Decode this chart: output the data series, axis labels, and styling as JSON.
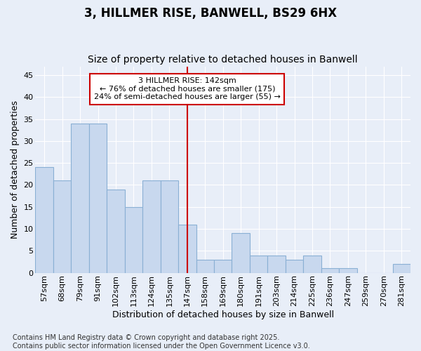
{
  "title1": "3, HILLMER RISE, BANWELL, BS29 6HX",
  "title2": "Size of property relative to detached houses in Banwell",
  "xlabel": "Distribution of detached houses by size in Banwell",
  "ylabel": "Number of detached properties",
  "categories": [
    "57sqm",
    "68sqm",
    "79sqm",
    "91sqm",
    "102sqm",
    "113sqm",
    "124sqm",
    "135sqm",
    "147sqm",
    "158sqm",
    "169sqm",
    "180sqm",
    "191sqm",
    "203sqm",
    "214sqm",
    "225sqm",
    "236sqm",
    "247sqm",
    "259sqm",
    "270sqm",
    "281sqm"
  ],
  "values": [
    24,
    21,
    34,
    34,
    19,
    15,
    21,
    21,
    11,
    3,
    3,
    9,
    4,
    4,
    3,
    4,
    1,
    1,
    0,
    0,
    2
  ],
  "bar_color": "#c8d8ee",
  "bar_edge_color": "#8ab0d4",
  "marker_line_idx": 8,
  "marker_label_line1": "3 HILLMER RISE: 142sqm",
  "marker_label_line2": "← 76% of detached houses are smaller (175)",
  "marker_label_line3": "24% of semi-detached houses are larger (55) →",
  "annotation_box_facecolor": "#ffffff",
  "annotation_box_edgecolor": "#cc0000",
  "vline_color": "#cc0000",
  "ylim": [
    0,
    47
  ],
  "yticks": [
    0,
    5,
    10,
    15,
    20,
    25,
    30,
    35,
    40,
    45
  ],
  "background_color": "#e8eef8",
  "grid_color": "#ffffff",
  "footer_line1": "Contains HM Land Registry data © Crown copyright and database right 2025.",
  "footer_line2": "Contains public sector information licensed under the Open Government Licence v3.0.",
  "title1_fontsize": 12,
  "title2_fontsize": 10,
  "axis_label_fontsize": 9,
  "tick_fontsize": 8,
  "annotation_fontsize": 8,
  "footer_fontsize": 7
}
